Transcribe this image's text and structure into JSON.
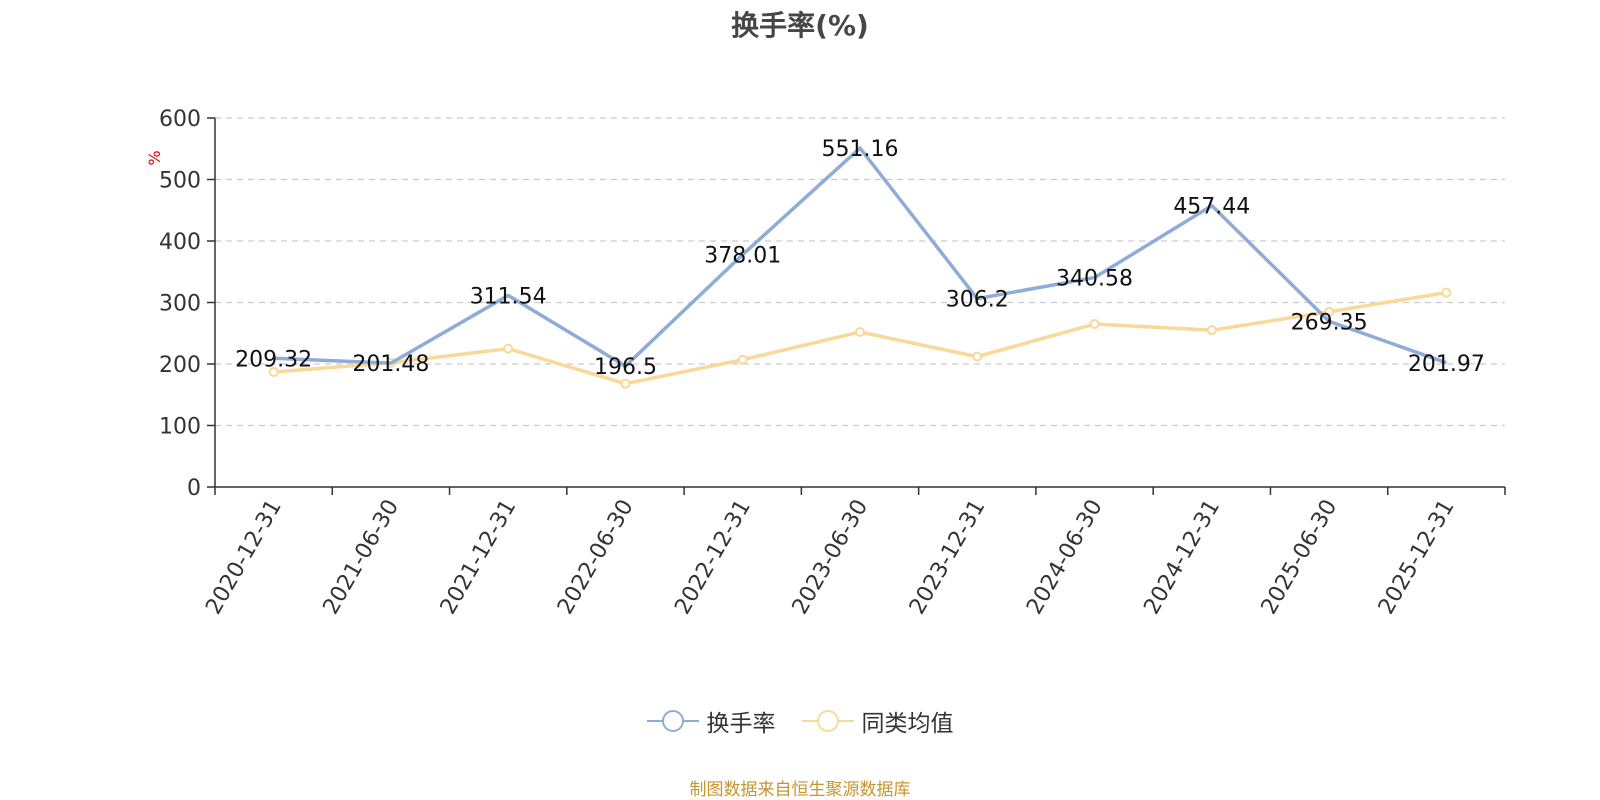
{
  "chart_data": {
    "type": "line",
    "title": "换手率(%)",
    "ylabel": "%",
    "xlabel": "",
    "ylim": [
      0,
      600
    ],
    "yticks": [
      0,
      100,
      200,
      300,
      400,
      500,
      600
    ],
    "categories": [
      "2020-12-31",
      "2021-06-30",
      "2021-12-31",
      "2022-06-30",
      "2022-12-31",
      "2023-06-30",
      "2023-12-31",
      "2024-06-30",
      "2024-12-31",
      "2025-06-30",
      "2025-12-31"
    ],
    "series": [
      {
        "name": "换手率",
        "color": "#8eacd7",
        "values": [
          209.32,
          201.48,
          311.54,
          196.5,
          378.01,
          551.16,
          306.2,
          340.58,
          457.44,
          269.35,
          201.97
        ],
        "labels": [
          "209.32",
          "201.48",
          "311.54",
          "196.5",
          "378.01",
          "551.16",
          "306.2",
          "340.58",
          "457.44",
          "269.35",
          "201.97"
        ]
      },
      {
        "name": "同类均值",
        "color": "#f9d898",
        "values": [
          187,
          202,
          225,
          168,
          207,
          252,
          212,
          265,
          255,
          285,
          316
        ]
      }
    ],
    "grid": true,
    "legend_position": "bottom"
  },
  "source_note": "制图数据来自恒生聚源数据库"
}
